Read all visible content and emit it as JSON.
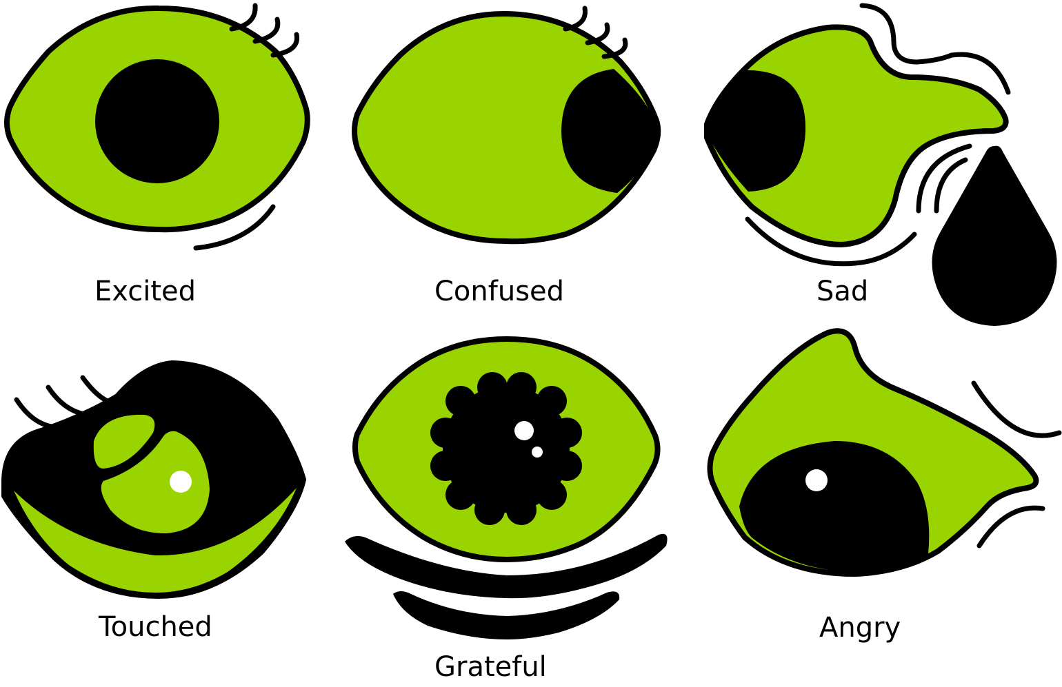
{
  "colors": {
    "iris_green": "#99d400",
    "outline": "#000000",
    "background": "#ffffff",
    "highlight": "#ffffff"
  },
  "emotions": [
    {
      "label": "Excited"
    },
    {
      "label": "Confused"
    },
    {
      "label": "Sad"
    },
    {
      "label": "Touched"
    },
    {
      "label": "Grateful"
    },
    {
      "label": "Angry"
    }
  ]
}
